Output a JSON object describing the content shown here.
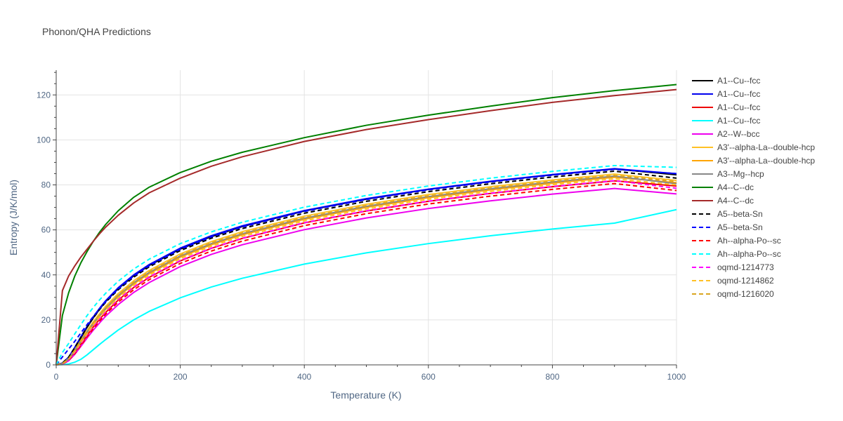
{
  "chart_data": {
    "type": "line",
    "title": "Phonon/QHA Predictions",
    "xlabel": "Temperature (K)",
    "ylabel": "Entropy (J/K/mol)",
    "xlim": [
      0,
      1000
    ],
    "ylim": [
      0,
      131
    ],
    "x_ticks": [
      0,
      200,
      400,
      600,
      800,
      1000
    ],
    "y_ticks": [
      0,
      20,
      40,
      60,
      80,
      100,
      120
    ],
    "grid": true,
    "legend_position": "right",
    "x": [
      0,
      10,
      20,
      30,
      40,
      50,
      60,
      70,
      80,
      100,
      125,
      150,
      200,
      250,
      300,
      400,
      500,
      600,
      700,
      800,
      900,
      1000
    ],
    "series": [
      {
        "name": "A1--Cu--fcc",
        "color": "#000000",
        "dash": "solid",
        "values": [
          0,
          0.8,
          3.2,
          7.4,
          12.1,
          16.8,
          21.0,
          24.8,
          28.2,
          33.9,
          39.6,
          44.2,
          51.5,
          57.0,
          61.5,
          68.4,
          73.7,
          78.0,
          81.5,
          84.5,
          87.1,
          84.5
        ]
      },
      {
        "name": "A1--Cu--fcc",
        "color": "#0000ee",
        "dash": "solid",
        "values": [
          0,
          0.8,
          3.4,
          7.8,
          12.6,
          17.2,
          21.4,
          25.2,
          28.6,
          34.3,
          40.0,
          44.6,
          51.9,
          57.4,
          61.8,
          68.6,
          73.9,
          78.1,
          81.6,
          84.6,
          87.2,
          85.0
        ]
      },
      {
        "name": "A1--Cu--fcc",
        "color": "#ee0000",
        "dash": "solid",
        "values": [
          0,
          0.4,
          2.1,
          5.3,
          9.2,
          13.2,
          16.9,
          20.3,
          23.4,
          28.8,
          34.4,
          38.9,
          46.2,
          51.8,
          56.2,
          63.1,
          68.4,
          72.7,
          76.2,
          79.2,
          81.8,
          79.5
        ]
      },
      {
        "name": "A1--Cu--fcc",
        "color": "#00ffff",
        "dash": "solid",
        "values": [
          0,
          0.1,
          0.4,
          1.2,
          2.5,
          4.5,
          6.8,
          9.1,
          11.3,
          15.5,
          20.0,
          23.8,
          29.8,
          34.6,
          38.5,
          44.8,
          49.8,
          53.9,
          57.4,
          60.4,
          63.0,
          69.0
        ]
      },
      {
        "name": "A2--W--bcc",
        "color": "#ee00ee",
        "dash": "solid",
        "values": [
          0,
          0.3,
          1.8,
          4.7,
          8.3,
          12.0,
          15.5,
          18.7,
          21.7,
          26.8,
          32.2,
          36.6,
          43.7,
          49.1,
          53.4,
          60.1,
          65.3,
          69.5,
          72.9,
          75.9,
          78.4,
          76.0
        ]
      },
      {
        "name": "A3'--alpha-La--double-hcp",
        "color": "#ffc125",
        "dash": "solid",
        "values": [
          0,
          0.6,
          2.8,
          6.7,
          11.0,
          15.3,
          19.2,
          22.8,
          26.1,
          31.7,
          37.4,
          42.0,
          49.3,
          54.8,
          59.2,
          66.1,
          71.4,
          75.7,
          79.2,
          82.2,
          84.8,
          82.0
        ]
      },
      {
        "name": "A3'--alpha-La--double-hcp",
        "color": "#ffa500",
        "dash": "solid",
        "values": [
          0,
          0.5,
          2.5,
          6.1,
          10.2,
          14.3,
          18.1,
          21.6,
          24.8,
          30.3,
          36.0,
          40.6,
          47.9,
          53.4,
          57.8,
          64.7,
          70.0,
          74.3,
          77.8,
          80.8,
          83.4,
          81.0
        ]
      },
      {
        "name": "A3--Mg--hcp",
        "color": "#888888",
        "dash": "solid",
        "values": [
          0,
          0.5,
          2.6,
          6.3,
          10.5,
          14.7,
          18.5,
          22.0,
          25.2,
          30.8,
          36.5,
          41.1,
          48.4,
          53.9,
          58.3,
          65.2,
          70.5,
          74.8,
          78.3,
          81.3,
          83.9,
          80.5
        ]
      },
      {
        "name": "A4--C--dc",
        "color": "#008000",
        "dash": "solid",
        "values": [
          0,
          22.0,
          32.0,
          39.5,
          45.5,
          50.5,
          55.0,
          59.0,
          62.5,
          68.5,
          74.5,
          79.0,
          85.5,
          90.5,
          94.5,
          101.0,
          106.5,
          111.0,
          115.0,
          118.8,
          121.9,
          124.6
        ]
      },
      {
        "name": "A4--C--dc",
        "color": "#a52a2a",
        "dash": "solid",
        "values": [
          0,
          33.0,
          39.5,
          44.0,
          48.0,
          51.5,
          55.0,
          58.3,
          61.3,
          66.5,
          72.0,
          76.5,
          83.0,
          88.3,
          92.5,
          99.3,
          104.6,
          109.0,
          113.0,
          116.7,
          119.7,
          122.4
        ]
      },
      {
        "name": "A5--beta-Sn",
        "color": "#000000",
        "dash": "dash",
        "values": [
          0,
          0.8,
          3.4,
          7.7,
          12.3,
          16.8,
          20.9,
          24.6,
          27.9,
          33.4,
          39.0,
          43.6,
          50.8,
          56.3,
          60.6,
          67.4,
          72.7,
          77.0,
          80.5,
          83.5,
          86.1,
          83.0
        ]
      },
      {
        "name": "A5--beta-Sn",
        "color": "#0000ff",
        "dash": "dash",
        "values": [
          0,
          3.5,
          7.0,
          10.5,
          14.3,
          18.0,
          21.6,
          25.0,
          28.2,
          33.8,
          39.5,
          44.1,
          51.4,
          56.9,
          61.3,
          68.2,
          73.5,
          77.8,
          81.3,
          84.3,
          86.9,
          85.0
        ]
      },
      {
        "name": "Ah--alpha-Po--sc",
        "color": "#ff0000",
        "dash": "dash",
        "values": [
          0,
          0.4,
          2.0,
          5.0,
          8.7,
          12.6,
          16.2,
          19.5,
          22.6,
          27.9,
          33.4,
          37.9,
          45.1,
          50.6,
          55.0,
          61.9,
          67.2,
          71.5,
          75.0,
          78.0,
          80.6,
          77.5
        ]
      },
      {
        "name": "Ah--alpha-Po--sc",
        "color": "#00ffff",
        "dash": "dash",
        "values": [
          0,
          5.5,
          9.5,
          13.8,
          18.0,
          22.0,
          25.6,
          28.9,
          31.9,
          37.2,
          42.6,
          47.0,
          53.9,
          59.1,
          63.4,
          70.1,
          75.3,
          79.5,
          83.0,
          86.0,
          88.6,
          87.8
        ]
      },
      {
        "name": "oqmd-1214773",
        "color": "#ff00ff",
        "dash": "dash",
        "values": [
          0,
          0.5,
          2.3,
          5.6,
          9.5,
          13.5,
          17.2,
          20.6,
          23.7,
          29.1,
          34.6,
          39.1,
          46.4,
          51.9,
          56.3,
          63.2,
          68.5,
          72.8,
          76.3,
          79.3,
          81.9,
          78.5
        ]
      },
      {
        "name": "oqmd-1214862",
        "color": "#ffc125",
        "dash": "dash",
        "values": [
          0,
          0.5,
          2.5,
          6.0,
          10.0,
          14.0,
          17.8,
          21.3,
          24.4,
          29.8,
          35.4,
          39.9,
          47.2,
          52.7,
          57.1,
          64.0,
          69.3,
          73.6,
          77.1,
          80.1,
          82.7,
          80.0
        ]
      },
      {
        "name": "oqmd-1216020",
        "color": "#daa520",
        "dash": "dash",
        "values": [
          0,
          0.6,
          2.7,
          6.5,
          10.7,
          14.9,
          18.8,
          22.4,
          25.6,
          31.1,
          36.8,
          41.4,
          48.7,
          54.2,
          58.6,
          65.5,
          70.8,
          75.1,
          78.6,
          81.6,
          84.2,
          81.5
        ]
      }
    ]
  }
}
